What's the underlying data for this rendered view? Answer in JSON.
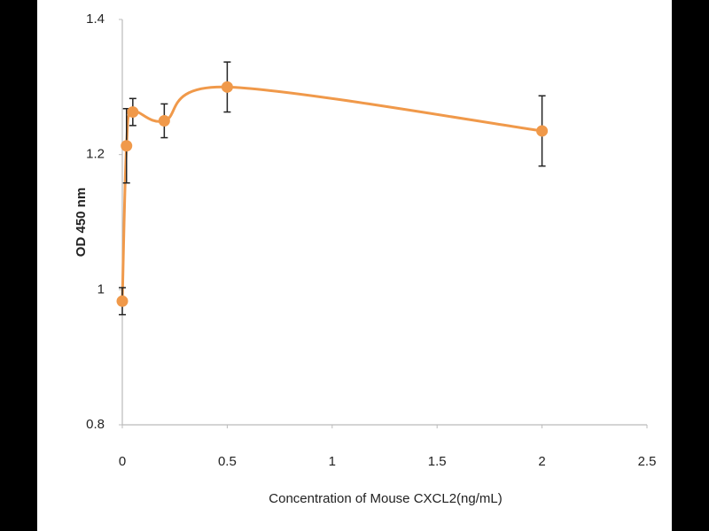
{
  "chart_data": {
    "type": "line",
    "x": [
      0,
      0.02,
      0.05,
      0.2,
      0.5,
      2
    ],
    "values": [
      0.983,
      1.213,
      1.263,
      1.25,
      1.3,
      1.235
    ],
    "errors": [
      0.02,
      0.055,
      0.02,
      0.025,
      0.037,
      0.052
    ],
    "color": "#f0994a",
    "smooth": true,
    "xlim": [
      0,
      2.5
    ],
    "xticks": [
      0,
      0.5,
      1,
      1.5,
      2,
      2.5
    ],
    "ylim": [
      0.8,
      1.4
    ],
    "yticks": [
      0.8,
      1,
      1.2,
      1.4
    ],
    "xlabel": "Concentration of Mouse CXCL2(ng/mL)",
    "ylabel": "OD 450 nm"
  }
}
